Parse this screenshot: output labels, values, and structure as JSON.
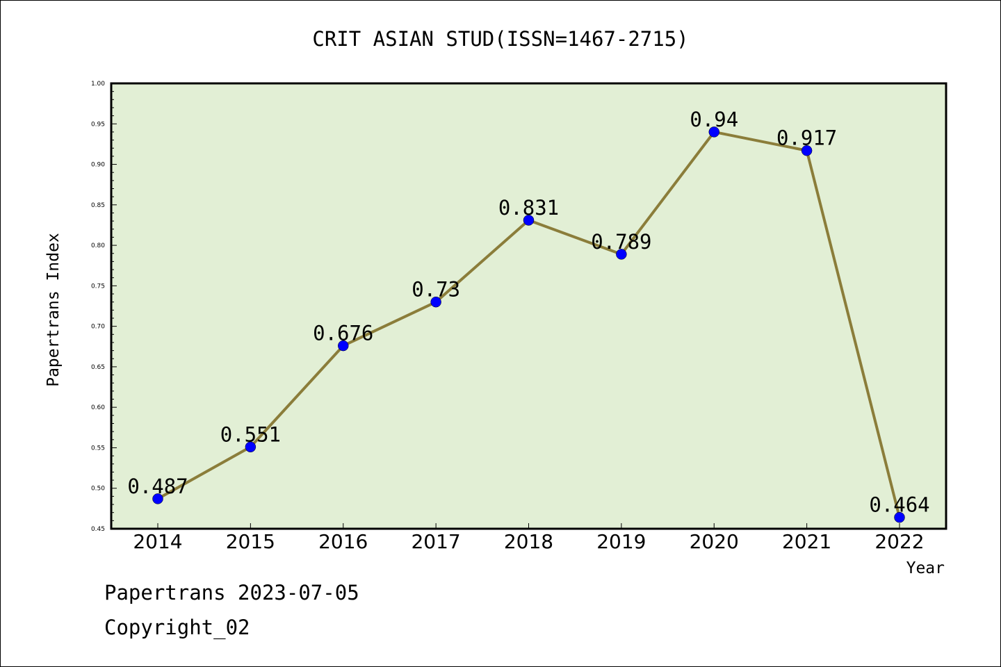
{
  "chart_data": {
    "type": "line",
    "title": "CRIT ASIAN STUD(ISSN=1467-2715)",
    "xlabel": "Year",
    "ylabel": "Papertrans Index",
    "categories": [
      "2014",
      "2015",
      "2016",
      "2017",
      "2018",
      "2019",
      "2020",
      "2021",
      "2022"
    ],
    "series": [
      {
        "values": [
          0.487,
          0.551,
          0.676,
          0.73,
          0.831,
          0.789,
          0.94,
          0.917,
          0.464
        ],
        "labels": [
          "0.487",
          "0.551",
          "0.676",
          "0.73",
          "0.831",
          "0.789",
          "0.94",
          "0.917",
          "0.464"
        ],
        "line_color": "#8b7d3a",
        "marker_color": "#0000ff"
      }
    ],
    "ylim": [
      0.45,
      1.0
    ],
    "yticks": [
      "0.45",
      "0.50",
      "0.55",
      "0.60",
      "0.65",
      "0.70",
      "0.75",
      "0.80",
      "0.85",
      "0.90",
      "0.95",
      "1.00"
    ],
    "grid": false,
    "plot_background": "#e2efd5"
  },
  "footer": {
    "line1": "Papertrans 2023-07-05",
    "line2": "Copyright_02"
  }
}
